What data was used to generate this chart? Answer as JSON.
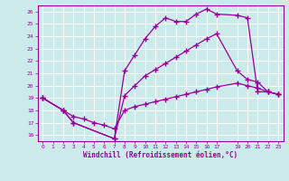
{
  "background_color": "#cceaea",
  "grid_color": "#ffffff",
  "line_color": "#990099",
  "xlabel": "Windchill (Refroidissement éolien,°C)",
  "xlim": [
    -0.5,
    23.5
  ],
  "ylim": [
    15.5,
    26.5
  ],
  "yticks": [
    16,
    17,
    18,
    19,
    20,
    21,
    22,
    23,
    24,
    25,
    26
  ],
  "xticks": [
    0,
    1,
    2,
    3,
    4,
    5,
    6,
    7,
    8,
    9,
    10,
    11,
    12,
    13,
    14,
    15,
    16,
    17,
    19,
    20,
    21,
    22,
    23
  ],
  "series": [
    {
      "x": [
        0,
        2,
        3,
        7,
        8,
        9,
        10,
        11,
        12,
        13,
        14,
        15,
        16,
        17,
        19,
        20,
        21,
        22,
        23
      ],
      "y": [
        19.0,
        18.0,
        17.0,
        15.7,
        21.2,
        22.5,
        23.8,
        24.8,
        25.5,
        25.2,
        25.2,
        25.8,
        26.2,
        25.8,
        25.7,
        25.5,
        19.5,
        19.5,
        19.3
      ]
    },
    {
      "x": [
        0,
        2,
        3,
        7,
        8,
        9,
        10,
        11,
        12,
        13,
        14,
        15,
        16,
        17,
        19,
        20,
        21,
        22,
        23
      ],
      "y": [
        19.0,
        18.0,
        17.0,
        15.7,
        19.2,
        20.0,
        20.8,
        21.3,
        21.8,
        22.3,
        22.8,
        23.3,
        23.8,
        24.2,
        21.2,
        20.5,
        20.3,
        19.5,
        19.3
      ]
    },
    {
      "x": [
        0,
        2,
        3,
        4,
        5,
        6,
        7,
        8,
        9,
        10,
        11,
        12,
        13,
        14,
        15,
        16,
        17,
        19,
        20,
        21,
        22,
        23
      ],
      "y": [
        19.0,
        18.0,
        17.5,
        17.3,
        17.0,
        16.8,
        16.5,
        18.0,
        18.3,
        18.5,
        18.7,
        18.9,
        19.1,
        19.3,
        19.5,
        19.7,
        19.9,
        20.2,
        20.0,
        19.8,
        19.5,
        19.3
      ]
    }
  ]
}
